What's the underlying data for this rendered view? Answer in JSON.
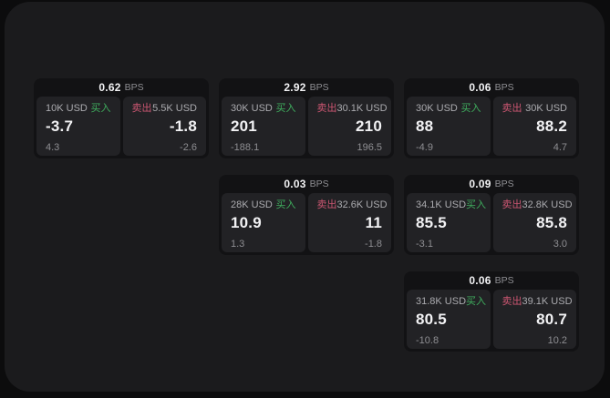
{
  "labels": {
    "buy": "买入",
    "sell": "卖出",
    "bps": "BPS"
  },
  "colors": {
    "page-bg": "#0c0c0d",
    "panel-bg": "#1b1b1d",
    "card-bg": "#121214",
    "tile-bg": "#222225",
    "text-primary": "#f2f2f4",
    "text-secondary": "#ababaf",
    "text-dim": "#8e8e92",
    "buy-green": "#3fae5e",
    "sell-red": "#cc5672"
  },
  "cards": [
    {
      "row": 1,
      "col": 1,
      "bps": "0.62",
      "buy": {
        "amount": "10K USD",
        "price": "-3.7",
        "delta": "4.3"
      },
      "sell": {
        "amount": "5.5K USD",
        "price": "-1.8",
        "delta": "-2.6"
      }
    },
    {
      "row": 1,
      "col": 2,
      "bps": "2.92",
      "buy": {
        "amount": "30K USD",
        "price": "201",
        "delta": "-188.1"
      },
      "sell": {
        "amount": "30.1K USD",
        "price": "210",
        "delta": "196.5"
      }
    },
    {
      "row": 1,
      "col": 3,
      "bps": "0.06",
      "buy": {
        "amount": "30K USD",
        "price": "88",
        "delta": "-4.9"
      },
      "sell": {
        "amount": "30K USD",
        "price": "88.2",
        "delta": "4.7"
      }
    },
    {
      "row": 2,
      "col": 2,
      "bps": "0.03",
      "buy": {
        "amount": "28K USD",
        "price": "10.9",
        "delta": "1.3"
      },
      "sell": {
        "amount": "32.6K USD",
        "price": "11",
        "delta": "-1.8"
      }
    },
    {
      "row": 2,
      "col": 3,
      "bps": "0.09",
      "buy": {
        "amount": "34.1K USD",
        "price": "85.5",
        "delta": "-3.1"
      },
      "sell": {
        "amount": "32.8K USD",
        "price": "85.8",
        "delta": "3.0"
      }
    },
    {
      "row": 3,
      "col": 3,
      "bps": "0.06",
      "buy": {
        "amount": "31.8K USD",
        "price": "80.5",
        "delta": "-10.8"
      },
      "sell": {
        "amount": "39.1K USD",
        "price": "80.7",
        "delta": "10.2"
      }
    }
  ]
}
